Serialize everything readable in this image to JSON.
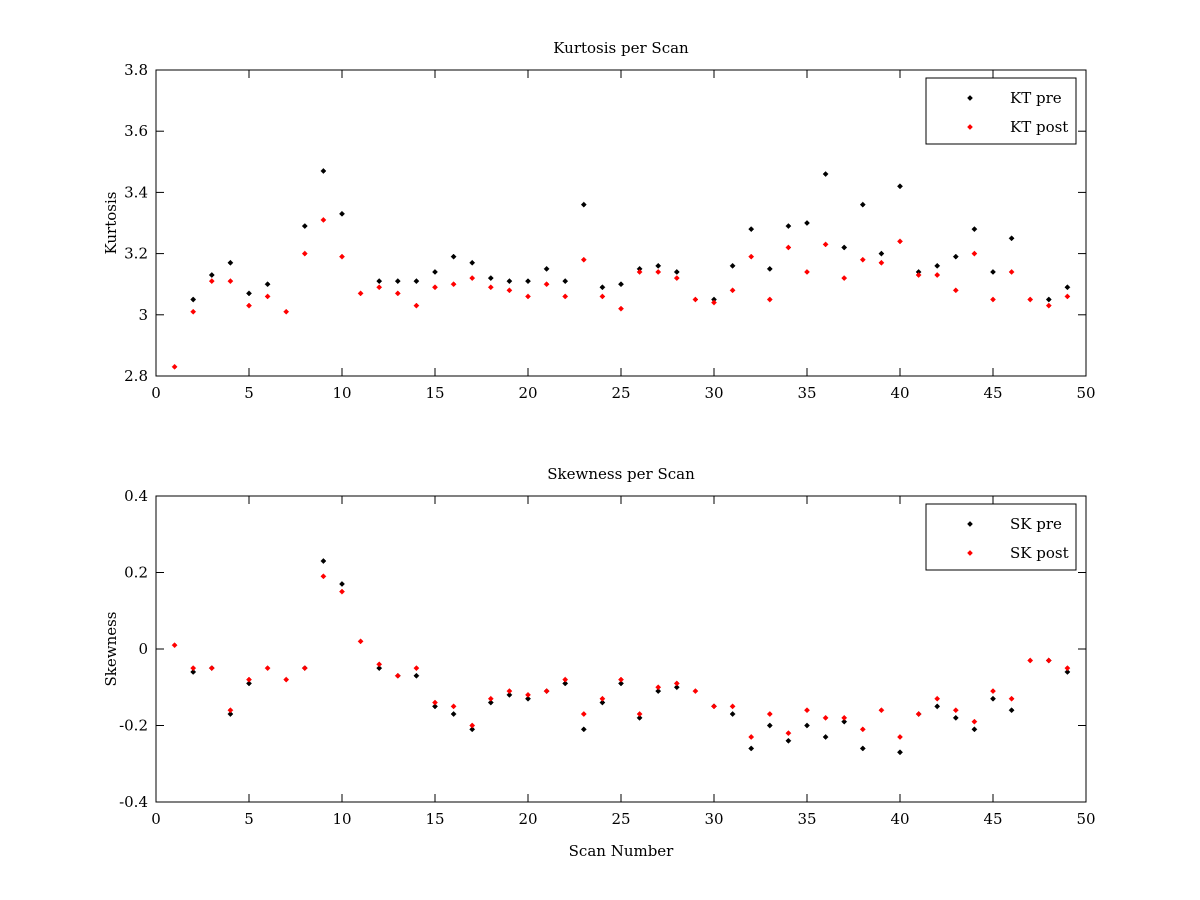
{
  "chart_data": [
    {
      "type": "scatter",
      "title": "Kurtosis per Scan",
      "xlabel": "",
      "ylabel": "Kurtosis",
      "xlim": [
        0,
        50
      ],
      "ylim": [
        2.8,
        3.8
      ],
      "xticks": [
        0,
        5,
        10,
        15,
        20,
        25,
        30,
        35,
        40,
        45,
        50
      ],
      "yticks": [
        2.8,
        3,
        3.2,
        3.4,
        3.6,
        3.8
      ],
      "xtick_labels": [
        "0",
        "5",
        "10",
        "15",
        "20",
        "25",
        "30",
        "35",
        "40",
        "45",
        "50"
      ],
      "ytick_labels": [
        "2.8",
        "3",
        "3.2",
        "3.4",
        "3.6",
        "3.8"
      ],
      "legend_position": "top-right",
      "series": [
        {
          "name": "KT pre",
          "color": "#000000",
          "x": [
            2,
            3,
            4,
            5,
            6,
            8,
            9,
            10,
            12,
            13,
            14,
            15,
            16,
            17,
            18,
            19,
            20,
            21,
            22,
            23,
            24,
            25,
            26,
            27,
            28,
            30,
            31,
            32,
            33,
            34,
            35,
            36,
            37,
            38,
            39,
            40,
            41,
            42,
            43,
            44,
            45,
            46,
            48,
            49
          ],
          "values": [
            3.05,
            3.13,
            3.17,
            3.07,
            3.1,
            3.29,
            3.47,
            3.33,
            3.11,
            3.11,
            3.11,
            3.14,
            3.19,
            3.17,
            3.12,
            3.11,
            3.11,
            3.15,
            3.11,
            3.36,
            3.09,
            3.1,
            3.15,
            3.16,
            3.14,
            3.05,
            3.16,
            3.28,
            3.15,
            3.29,
            3.3,
            3.46,
            3.22,
            3.36,
            3.2,
            3.42,
            3.14,
            3.16,
            3.19,
            3.28,
            3.14,
            3.25,
            3.05,
            3.09
          ]
        },
        {
          "name": "KT post",
          "color": "#ff0000",
          "x": [
            1,
            2,
            3,
            4,
            5,
            6,
            7,
            8,
            9,
            10,
            11,
            12,
            13,
            14,
            15,
            16,
            17,
            18,
            19,
            20,
            21,
            22,
            23,
            24,
            25,
            26,
            27,
            28,
            29,
            30,
            31,
            32,
            33,
            34,
            35,
            36,
            37,
            38,
            39,
            40,
            41,
            42,
            43,
            44,
            45,
            46,
            47,
            48,
            49
          ],
          "values": [
            2.83,
            3.01,
            3.11,
            3.11,
            3.03,
            3.06,
            3.01,
            3.2,
            3.31,
            3.19,
            3.07,
            3.09,
            3.07,
            3.03,
            3.09,
            3.1,
            3.12,
            3.09,
            3.08,
            3.06,
            3.1,
            3.06,
            3.18,
            3.06,
            3.02,
            3.14,
            3.14,
            3.12,
            3.05,
            3.04,
            3.08,
            3.19,
            3.05,
            3.22,
            3.14,
            3.23,
            3.12,
            3.18,
            3.17,
            3.24,
            3.13,
            3.13,
            3.08,
            3.2,
            3.05,
            3.14,
            3.05,
            3.03,
            3.06
          ]
        }
      ]
    },
    {
      "type": "scatter",
      "title": "Skewness per Scan",
      "xlabel": "Scan Number",
      "ylabel": "Skewness",
      "xlim": [
        0,
        50
      ],
      "ylim": [
        -0.4,
        0.4
      ],
      "xticks": [
        0,
        5,
        10,
        15,
        20,
        25,
        30,
        35,
        40,
        45,
        50
      ],
      "yticks": [
        -0.4,
        -0.2,
        0,
        0.2,
        0.4
      ],
      "xtick_labels": [
        "0",
        "5",
        "10",
        "15",
        "20",
        "25",
        "30",
        "35",
        "40",
        "45",
        "50"
      ],
      "ytick_labels": [
        "-0.4",
        "-0.2",
        "0",
        "0.2",
        "0.4"
      ],
      "legend_position": "top-right",
      "series": [
        {
          "name": "SK pre",
          "color": "#000000",
          "x": [
            2,
            3,
            4,
            5,
            8,
            9,
            10,
            12,
            13,
            14,
            15,
            16,
            17,
            18,
            19,
            20,
            21,
            22,
            23,
            24,
            25,
            26,
            27,
            28,
            30,
            31,
            32,
            33,
            34,
            35,
            36,
            37,
            38,
            40,
            41,
            42,
            43,
            44,
            45,
            46,
            48,
            49
          ],
          "values": [
            -0.06,
            -0.05,
            -0.17,
            -0.09,
            -0.05,
            0.23,
            0.17,
            -0.05,
            -0.07,
            -0.07,
            -0.15,
            -0.17,
            -0.21,
            -0.14,
            -0.12,
            -0.13,
            -0.11,
            -0.09,
            -0.21,
            -0.14,
            -0.09,
            -0.18,
            -0.11,
            -0.1,
            -0.15,
            -0.17,
            -0.26,
            -0.2,
            -0.24,
            -0.2,
            -0.23,
            -0.19,
            -0.26,
            -0.27,
            -0.17,
            -0.15,
            -0.18,
            -0.21,
            -0.13,
            -0.16,
            -0.03,
            -0.06
          ]
        },
        {
          "name": "SK post",
          "color": "#ff0000",
          "x": [
            1,
            2,
            3,
            4,
            5,
            6,
            7,
            8,
            9,
            10,
            11,
            12,
            13,
            14,
            15,
            16,
            17,
            18,
            19,
            20,
            21,
            22,
            23,
            24,
            25,
            26,
            27,
            28,
            29,
            30,
            31,
            32,
            33,
            34,
            35,
            36,
            37,
            38,
            39,
            40,
            41,
            42,
            43,
            44,
            45,
            46,
            47,
            48,
            49
          ],
          "values": [
            0.01,
            -0.05,
            -0.05,
            -0.16,
            -0.08,
            -0.05,
            -0.08,
            -0.05,
            0.19,
            0.15,
            0.02,
            -0.04,
            -0.07,
            -0.05,
            -0.14,
            -0.15,
            -0.2,
            -0.13,
            -0.11,
            -0.12,
            -0.11,
            -0.08,
            -0.17,
            -0.13,
            -0.08,
            -0.17,
            -0.1,
            -0.09,
            -0.11,
            -0.15,
            -0.15,
            -0.23,
            -0.17,
            -0.22,
            -0.16,
            -0.18,
            -0.18,
            -0.21,
            -0.16,
            -0.23,
            -0.17,
            -0.13,
            -0.16,
            -0.19,
            -0.11,
            -0.13,
            -0.03,
            -0.03,
            -0.05
          ]
        }
      ]
    }
  ]
}
